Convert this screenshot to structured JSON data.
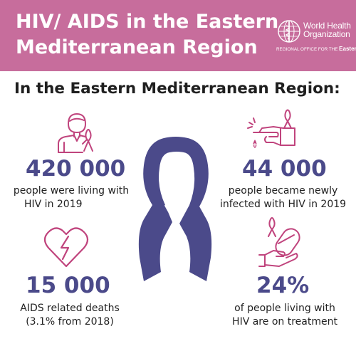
{
  "header": {
    "title_line1": "HIV/ AIDS in the Eastern",
    "title_line2": "Mediterranean Region",
    "who_name_line1": "World Health",
    "who_name_line2": "Organization",
    "who_sub_prefix": "REGIONAL OFFICE FOR THE",
    "who_sub_region": "Eastern Mediterranean"
  },
  "subtitle": "In the Eastern Mediterranean Region:",
  "stats": [
    {
      "number": "420 000",
      "desc_line1": "people were living with",
      "desc_line2": "HIV in 2019",
      "icon": "person-ribbon-icon"
    },
    {
      "number": "44 000",
      "desc_line1": "people became newly",
      "desc_line2": "infected with HIV in 2019",
      "icon": "blood-test-icon"
    },
    {
      "number": "15 000",
      "desc_line1": "AIDS related deaths",
      "desc_line2": "(3.1% from 2018)",
      "icon": "broken-heart-icon"
    },
    {
      "number": "24%",
      "desc_line1": "of people living with",
      "desc_line2": "HIV are on treatment",
      "icon": "hand-pill-icon"
    }
  ],
  "colors": {
    "header_bg": "#c76d9c",
    "accent_number": "#4b4a8a",
    "icon_pink": "#c0447d",
    "ribbon": "#4b4a8a"
  }
}
